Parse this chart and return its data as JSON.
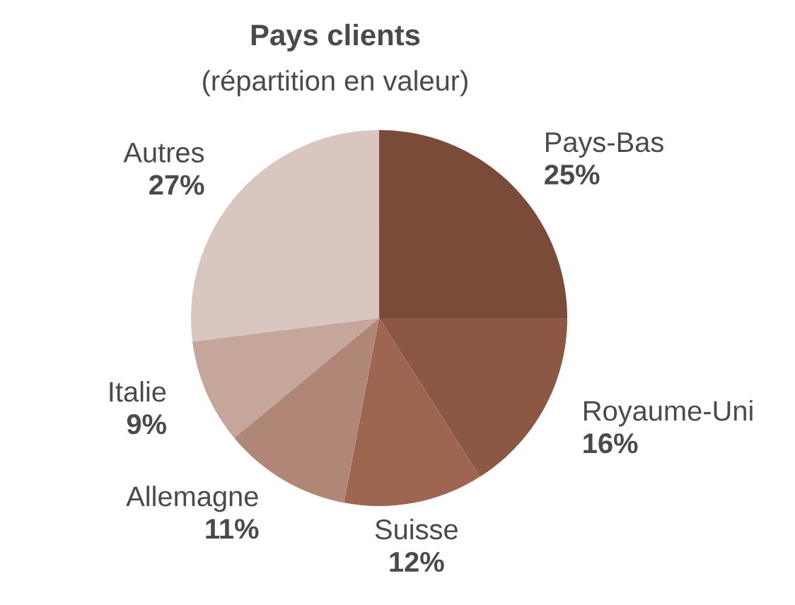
{
  "chart_data": {
    "type": "pie",
    "title": "Pays clients",
    "subtitle": "(répartition en valeur)",
    "categories": [
      "Pays-Bas",
      "Royaume-Uni",
      "Suisse",
      "Allemagne",
      "Italie",
      "Autres"
    ],
    "values": [
      25,
      16,
      12,
      11,
      9,
      27
    ],
    "value_labels": [
      "25%",
      "16%",
      "12%",
      "11%",
      "9%",
      "27%"
    ],
    "colors": [
      "#7a4b38",
      "#8c5843",
      "#9e6650",
      "#b08676",
      "#c6a59b",
      "#d9c6c1"
    ]
  }
}
